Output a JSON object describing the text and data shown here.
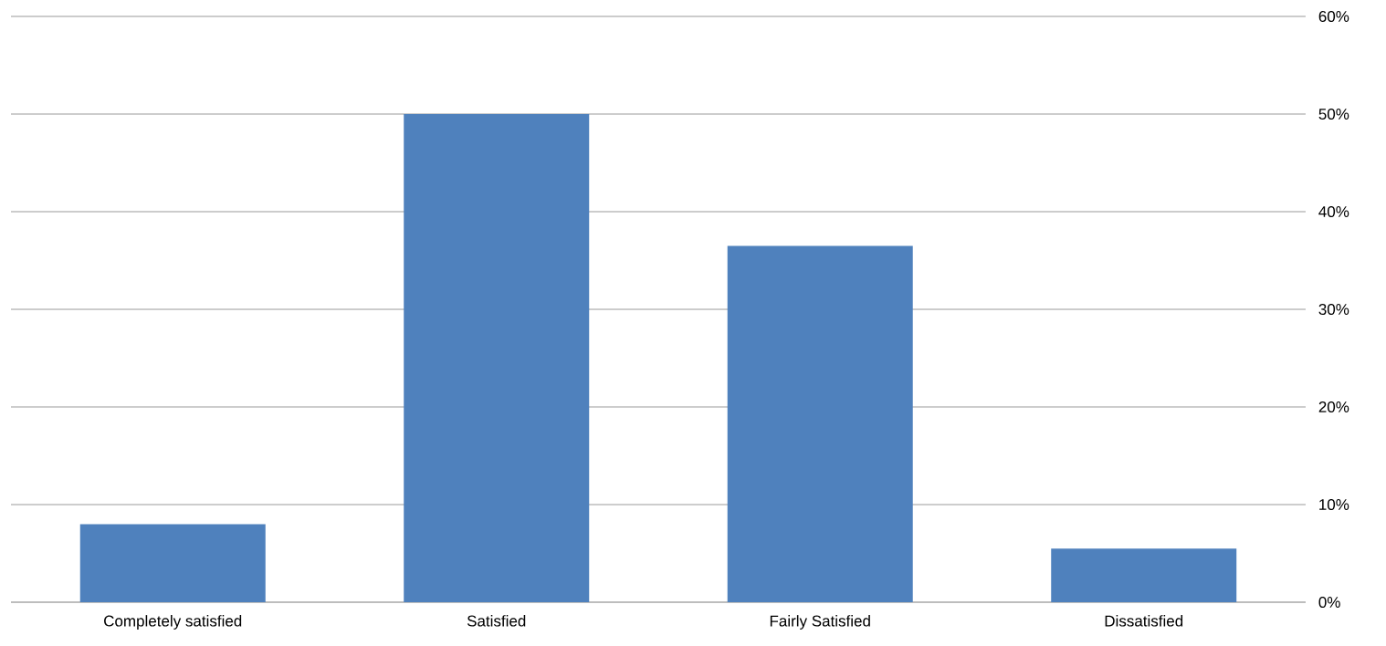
{
  "chart_data": {
    "type": "bar",
    "categories": [
      "Completely satisfied",
      "Satisfied",
      "Fairly Satisfied",
      "Dissatisfied"
    ],
    "values": [
      8,
      50,
      36.5,
      5.5
    ],
    "color": "#4f81bd",
    "ylim": [
      0,
      60
    ],
    "yticks": [
      {
        "value": 0,
        "label": "0%"
      },
      {
        "value": 10,
        "label": "10%"
      },
      {
        "value": 20,
        "label": "20%"
      },
      {
        "value": 30,
        "label": "30%"
      },
      {
        "value": 40,
        "label": "40%"
      },
      {
        "value": 50,
        "label": "50%"
      },
      {
        "value": 60,
        "label": "60%"
      }
    ],
    "grid": "y"
  }
}
